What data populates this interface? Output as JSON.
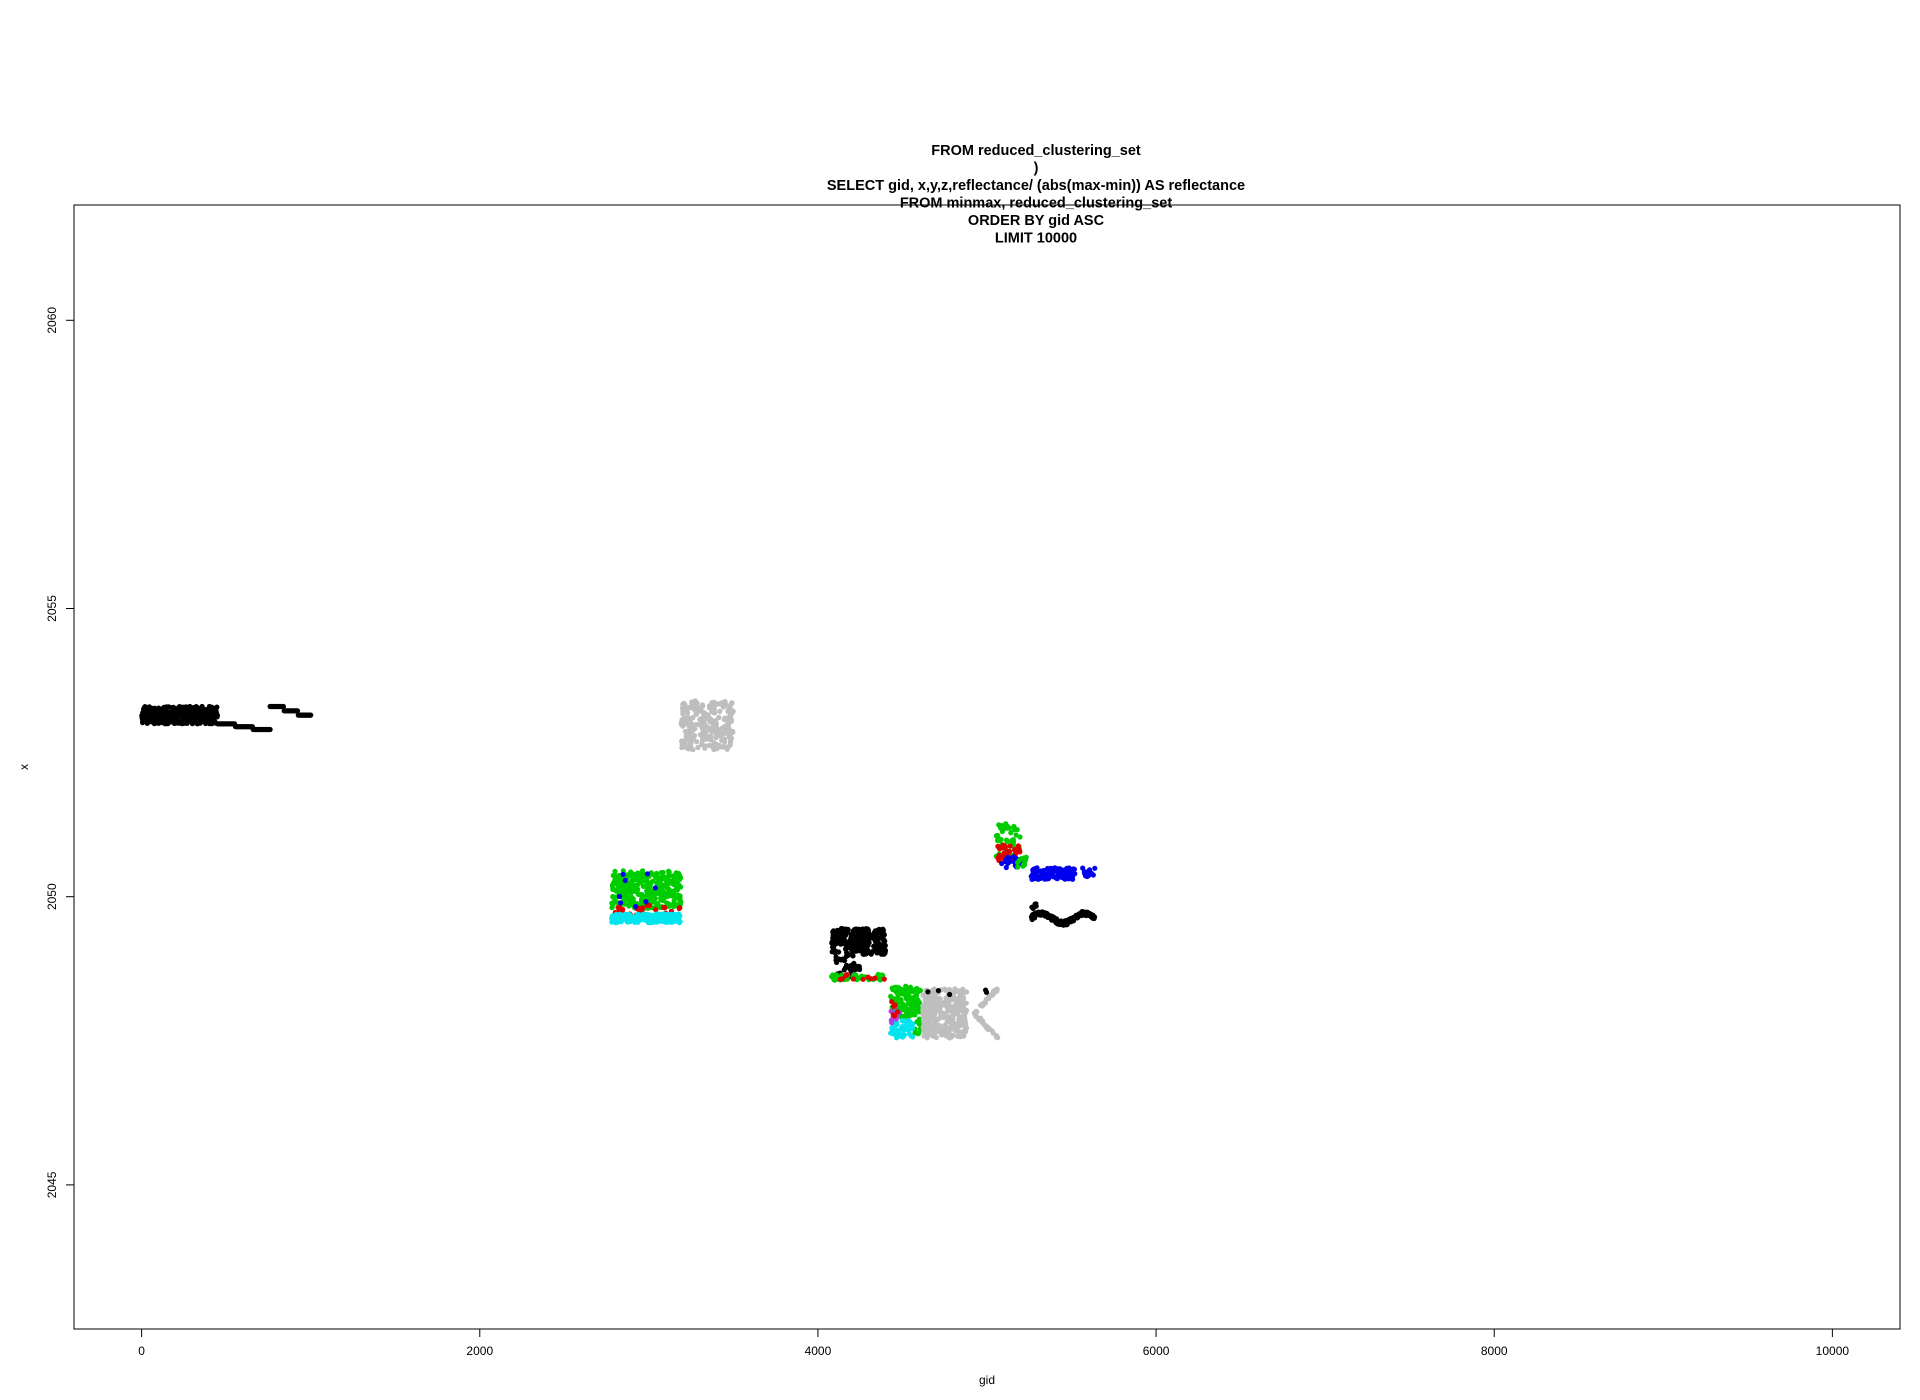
{
  "chart_data": {
    "type": "scatter",
    "title_lines": [
      "FROM reduced_clustering_set",
      ")",
      "SELECT gid, x,y,z,reflectance/ (abs(max-min)) AS reflectance",
      "FROM minmax, reduced_clustering_set",
      "ORDER BY gid ASC",
      "LIMIT 10000"
    ],
    "xlabel": "gid",
    "ylabel": "x",
    "xlim": [
      -400,
      10400
    ],
    "ylim": [
      2042.5,
      2062.0
    ],
    "x_ticks": [
      0,
      2000,
      4000,
      6000,
      8000,
      10000
    ],
    "y_ticks": [
      2045,
      2050,
      2055,
      2060
    ],
    "grid": false,
    "legend": "none",
    "colors": {
      "black": "#000000",
      "gray": "#bebebe",
      "green": "#00cd00",
      "red": "#df0000",
      "blue": "#0000ee",
      "cyan": "#00e5ee",
      "purple": "#b040e0"
    },
    "clusters": [
      {
        "color": "black",
        "x": [
          0,
          450
        ],
        "y": [
          2053.0,
          2053.3
        ],
        "n": 420,
        "shape": "rect"
      },
      {
        "color": "black",
        "x": [
          450,
          760
        ],
        "y": [
          2052.9,
          2053.0
        ],
        "n": 60,
        "shape": "stairs"
      },
      {
        "color": "black",
        "x": [
          760,
          1000
        ],
        "y": [
          2053.15,
          2053.3
        ],
        "n": 50,
        "shape": "stairs"
      },
      {
        "color": "gray",
        "x": [
          3190,
          3500
        ],
        "y": [
          2052.55,
          2053.4
        ],
        "n": 260,
        "shape": "rect"
      },
      {
        "color": "green",
        "x": [
          2780,
          3190
        ],
        "y": [
          2049.8,
          2050.45
        ],
        "n": 330,
        "shape": "rect"
      },
      {
        "color": "red",
        "x": [
          2780,
          3190
        ],
        "y": [
          2049.6,
          2049.85
        ],
        "n": 30,
        "shape": "rect"
      },
      {
        "color": "cyan",
        "x": [
          2780,
          3190
        ],
        "y": [
          2049.55,
          2049.7
        ],
        "n": 150,
        "shape": "rect"
      },
      {
        "color": "blue",
        "x": [
          2780,
          3190
        ],
        "y": [
          2049.6,
          2050.4
        ],
        "n": 8,
        "shape": "rect"
      },
      {
        "color": "black",
        "x": [
          4080,
          4400
        ],
        "y": [
          2049.0,
          2049.45
        ],
        "n": 260,
        "shape": "rect"
      },
      {
        "color": "black",
        "x": [
          4080,
          4250
        ],
        "y": [
          2048.6,
          2049.0
        ],
        "n": 40,
        "shape": "rect"
      },
      {
        "color": "green",
        "x": [
          4080,
          4400
        ],
        "y": [
          2048.55,
          2048.65
        ],
        "n": 40,
        "shape": "rect"
      },
      {
        "color": "red",
        "x": [
          4080,
          4400
        ],
        "y": [
          2048.55,
          2048.65
        ],
        "n": 10,
        "shape": "rect"
      },
      {
        "color": "green",
        "x": [
          4430,
          4600
        ],
        "y": [
          2047.9,
          2048.45
        ],
        "n": 120,
        "shape": "rect"
      },
      {
        "color": "green",
        "x": [
          4570,
          4610
        ],
        "y": [
          2047.6,
          2048.4
        ],
        "n": 20,
        "shape": "rect"
      },
      {
        "color": "cyan",
        "x": [
          4430,
          4560
        ],
        "y": [
          2047.55,
          2047.85
        ],
        "n": 60,
        "shape": "rect"
      },
      {
        "color": "purple",
        "x": [
          4430,
          4480
        ],
        "y": [
          2047.8,
          2048.1
        ],
        "n": 10,
        "shape": "rect"
      },
      {
        "color": "red",
        "x": [
          4430,
          4480
        ],
        "y": [
          2047.9,
          2048.2
        ],
        "n": 6,
        "shape": "rect"
      },
      {
        "color": "gray",
        "x": [
          4620,
          4880
        ],
        "y": [
          2047.55,
          2048.4
        ],
        "n": 330,
        "shape": "rect"
      },
      {
        "color": "gray",
        "x": [
          4880,
          5070
        ],
        "y": [
          2047.55,
          2048.4
        ],
        "n": 60,
        "shape": "v"
      },
      {
        "color": "black",
        "x": [
          4650,
          5060
        ],
        "y": [
          2048.3,
          2048.4
        ],
        "n": 5,
        "shape": "rect"
      },
      {
        "color": "green",
        "x": [
          5050,
          5200
        ],
        "y": [
          2050.7,
          2051.3
        ],
        "n": 45,
        "shape": "rect"
      },
      {
        "color": "red",
        "x": [
          5060,
          5200
        ],
        "y": [
          2050.6,
          2050.9
        ],
        "n": 35,
        "shape": "rect"
      },
      {
        "color": "blue",
        "x": [
          5080,
          5200
        ],
        "y": [
          2050.5,
          2050.7
        ],
        "n": 20,
        "shape": "rect"
      },
      {
        "color": "green",
        "x": [
          5180,
          5260
        ],
        "y": [
          2050.5,
          2050.7
        ],
        "n": 10,
        "shape": "rect"
      },
      {
        "color": "blue",
        "x": [
          5260,
          5520
        ],
        "y": [
          2050.3,
          2050.5
        ],
        "n": 120,
        "shape": "rect"
      },
      {
        "color": "blue",
        "x": [
          5560,
          5640
        ],
        "y": [
          2050.35,
          2050.5
        ],
        "n": 12,
        "shape": "rect"
      },
      {
        "color": "black",
        "x": [
          5260,
          5640
        ],
        "y": [
          2049.5,
          2049.75
        ],
        "n": 150,
        "shape": "wave"
      },
      {
        "color": "black",
        "x": [
          5260,
          5300
        ],
        "y": [
          2049.75,
          2049.9
        ],
        "n": 6,
        "shape": "rect"
      }
    ]
  }
}
